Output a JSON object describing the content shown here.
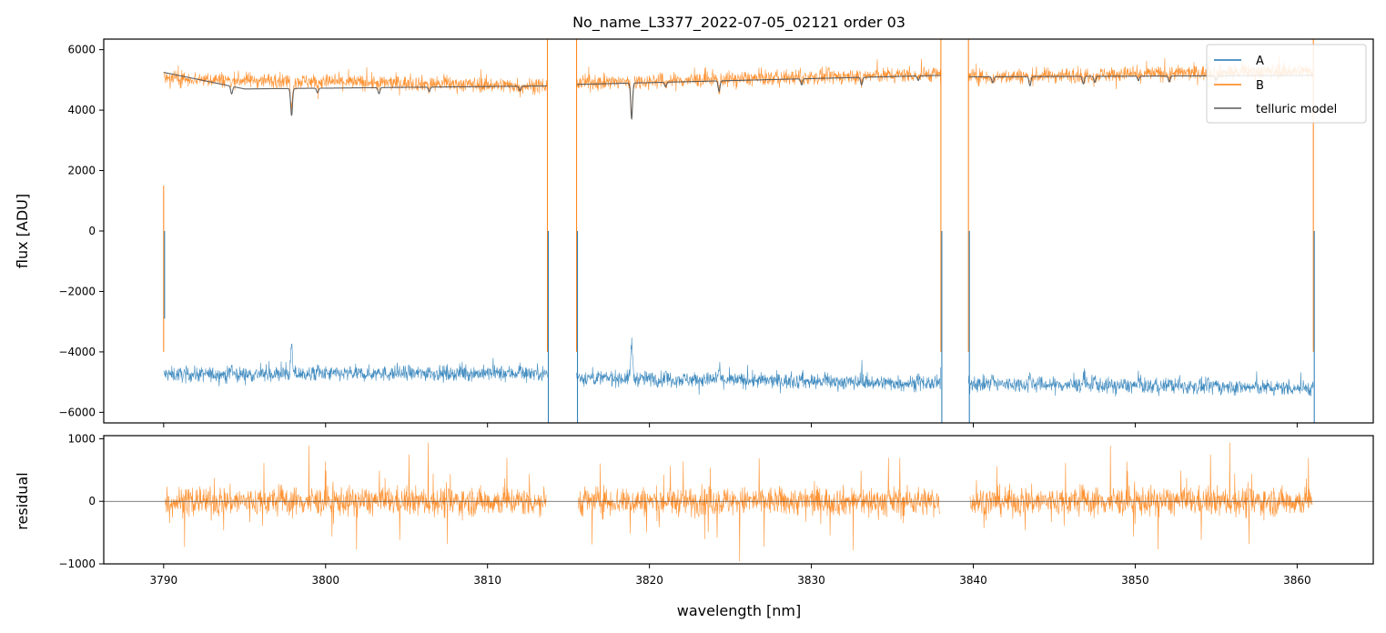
{
  "chart_data": [
    {
      "type": "line",
      "title": "No_name_L3377_2022-07-05_02121  order 03",
      "xlabel": "",
      "ylabel": "flux [ADU]",
      "xlim": [
        3786.3,
        3864.7
      ],
      "ylim": [
        -6350,
        6350
      ],
      "xticks": [
        3790,
        3800,
        3810,
        3820,
        3830,
        3840,
        3850,
        3860
      ],
      "yticks": [
        -6000,
        -4000,
        -2000,
        0,
        2000,
        4000,
        6000
      ],
      "ytick_labels": [
        "−6000",
        "−4000",
        "−2000",
        "0",
        "2000",
        "4000",
        "6000"
      ],
      "segments": [
        [
          3790.0,
          3813.7
        ],
        [
          3815.5,
          3838.0
        ],
        [
          3839.7,
          3861.0
        ]
      ],
      "legend": {
        "position": "top-right",
        "entries": [
          "A",
          "B",
          "telluric model"
        ]
      },
      "series": [
        {
          "name": "A",
          "color": "#1f77b4",
          "level": [
            [
              3790,
              -4750
            ],
            [
              3813.7,
              -4700
            ],
            [
              3815.5,
              -4850
            ],
            [
              3838,
              -5050
            ],
            [
              3839.7,
              -5050
            ],
            [
              3861,
              -5200
            ]
          ],
          "noise": 300
        },
        {
          "name": "B",
          "color": "#ff7f0e",
          "level": [
            [
              3790,
              5050
            ],
            [
              3813.7,
              4800
            ],
            [
              3815.5,
              4900
            ],
            [
              3838,
              5200
            ],
            [
              3839.7,
              5100
            ],
            [
              3861,
              5300
            ]
          ],
          "noise": 300
        },
        {
          "name": "telluric model",
          "color": "#595959",
          "level": [
            [
              3790,
              5250
            ],
            [
              3795,
              4700
            ],
            [
              3813.7,
              4800
            ],
            [
              3815.5,
              4850
            ],
            [
              3838,
              5150
            ],
            [
              3839.7,
              5100
            ],
            [
              3861,
              5150
            ]
          ],
          "noise": 0
        }
      ]
    },
    {
      "type": "line",
      "title": "",
      "xlabel": "wavelength [nm]",
      "ylabel": "residual",
      "xlim": [
        3786.3,
        3864.7
      ],
      "ylim": [
        -1000,
        1050
      ],
      "xticks": [
        3790,
        3800,
        3810,
        3820,
        3830,
        3840,
        3850,
        3860
      ],
      "xtick_labels": [
        "3790",
        "3800",
        "3810",
        "3820",
        "3830",
        "3840",
        "3850",
        "3860"
      ],
      "yticks": [
        -1000,
        0,
        1000
      ],
      "ytick_labels": [
        "−1000",
        "0",
        "1000"
      ],
      "reference_line": 0,
      "series": [
        {
          "name": "residual",
          "color": "#ff7f0e",
          "level": [
            [
              3790,
              0
            ],
            [
              3861,
              0
            ]
          ],
          "noise": 300
        }
      ]
    }
  ]
}
